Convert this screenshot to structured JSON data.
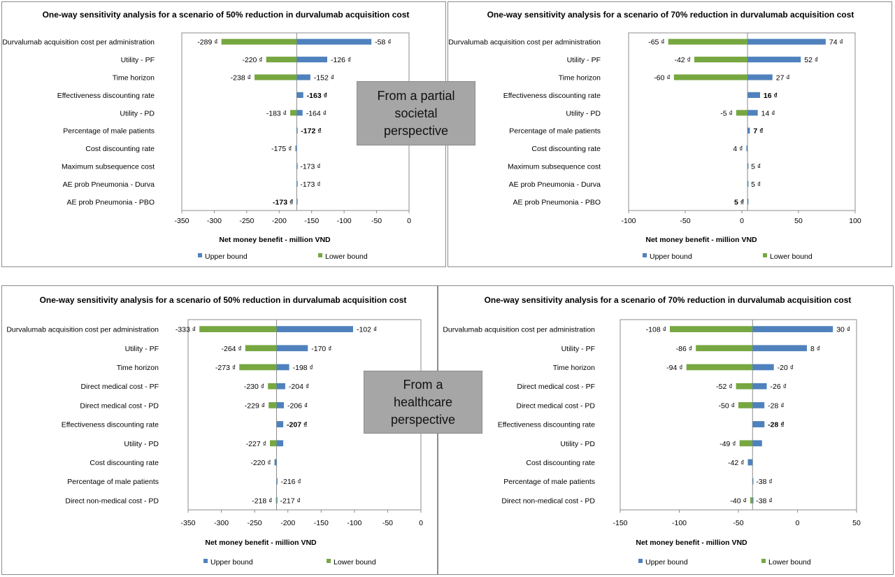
{
  "colors": {
    "upper": "#4f81bd",
    "lower": "#77a741",
    "axis": "#8c8c8c"
  },
  "overlays": [
    {
      "text": "From a partial\nsocietal\nperspective"
    },
    {
      "text": "From a\nhealthcare\nperspective"
    }
  ],
  "chart_data": [
    {
      "type": "bar",
      "orientation": "horizontal-tornado",
      "title": "One-way sensitivity analysis for a scenario of  50% reduction in durvalumab acquisition cost",
      "xlabel": "Net money benefit - million VND",
      "base": -173,
      "xlim": [
        -350,
        0
      ],
      "xticks": [
        -350,
        -300,
        -250,
        -200,
        -150,
        -100,
        -50,
        0
      ],
      "unit_suffix": " ₫",
      "categories": [
        "Durvalumab acquisition cost per administration",
        "Utility - PF",
        "Time horizon",
        "Effectiveness discounting rate",
        "Utility - PD",
        "Percentage of male patients",
        "Cost discounting rate",
        "Maximum subsequence cost",
        "AE prob Pneumonia - Durva",
        "AE prob Pneumonia - PBO"
      ],
      "series": [
        {
          "name": "Upper bound",
          "values": [
            -58,
            -126,
            -152,
            -163,
            -164,
            -172,
            -175,
            -173,
            -173,
            -173
          ]
        },
        {
          "name": "Lower bound",
          "values": [
            -289,
            -220,
            -238,
            -163,
            -183,
            -172,
            -175,
            -173,
            -173,
            -173
          ]
        }
      ],
      "labels": [
        [
          {
            "side": "right",
            "text": "-58 ₫"
          },
          {
            "side": "left",
            "text": "-289 ₫"
          }
        ],
        [
          {
            "side": "right",
            "text": "-126 ₫"
          },
          {
            "side": "left",
            "text": "-220 ₫"
          }
        ],
        [
          {
            "side": "right",
            "text": "-152 ₫"
          },
          {
            "side": "left",
            "text": "-238 ₫"
          }
        ],
        [
          {
            "side": "right",
            "text": "-163 ₫",
            "bold": true
          }
        ],
        [
          {
            "side": "right",
            "text": "-164 ₫"
          },
          {
            "side": "left",
            "text": "-183 ₫"
          }
        ],
        [
          {
            "side": "right",
            "text": "-172 ₫",
            "bold": true
          }
        ],
        [
          {
            "side": "left",
            "text": "-175 ₫"
          }
        ],
        [
          {
            "side": "right",
            "text": "-173 ₫"
          }
        ],
        [
          {
            "side": "right",
            "text": "-173 ₫"
          }
        ],
        [
          {
            "side": "left",
            "text": "-173 ₫",
            "bold": true
          }
        ]
      ],
      "legend": [
        "Upper bound",
        "Lower bound"
      ],
      "legend_position": "bottom"
    },
    {
      "type": "bar",
      "orientation": "horizontal-tornado",
      "title": "One-way sensitivity analysis for a scenario of  70% reduction in durvalumab acquisition cost",
      "xlabel": "Net money benefit - million VND",
      "base": 5,
      "xlim": [
        -100,
        100
      ],
      "xticks": [
        -100,
        -50,
        0,
        50,
        100
      ],
      "unit_suffix": " ₫",
      "categories": [
        "Durvalumab acquisition cost per administration",
        "Utility - PF",
        "Time horizon",
        "Effectiveness discounting rate",
        "Utility - PD",
        "Percentage of male patients",
        "Cost discounting rate",
        "Maximum subsequence cost",
        "AE prob Pneumonia - Durva",
        "AE prob Pneumonia - PBO"
      ],
      "series": [
        {
          "name": "Upper bound",
          "values": [
            74,
            52,
            27,
            16,
            14,
            7,
            4,
            5,
            5,
            5
          ]
        },
        {
          "name": "Lower bound",
          "values": [
            -65,
            -42,
            -60,
            16,
            -5,
            7,
            4,
            5,
            5,
            5
          ]
        }
      ],
      "labels": [
        [
          {
            "side": "right",
            "text": "74 ₫"
          },
          {
            "side": "left",
            "text": "-65 ₫"
          }
        ],
        [
          {
            "side": "right",
            "text": "52 ₫"
          },
          {
            "side": "left",
            "text": "-42 ₫"
          }
        ],
        [
          {
            "side": "right",
            "text": "27 ₫"
          },
          {
            "side": "left",
            "text": "-60 ₫"
          }
        ],
        [
          {
            "side": "right",
            "text": "16 ₫",
            "bold": true
          }
        ],
        [
          {
            "side": "right",
            "text": "14 ₫"
          },
          {
            "side": "left",
            "text": "-5 ₫"
          }
        ],
        [
          {
            "side": "right",
            "text": "7 ₫",
            "bold": true
          }
        ],
        [
          {
            "side": "left",
            "text": "4 ₫"
          }
        ],
        [
          {
            "side": "right",
            "text": "5 ₫"
          }
        ],
        [
          {
            "side": "right",
            "text": "5 ₫"
          }
        ],
        [
          {
            "side": "left",
            "text": "5 ₫",
            "bold": true
          }
        ]
      ],
      "legend": [
        "Upper bound",
        "Lower bound"
      ],
      "legend_position": "bottom"
    },
    {
      "type": "bar",
      "orientation": "horizontal-tornado",
      "title": "One-way sensitivity analysis for a scenario of  50% reduction in durvalumab acquisition cost",
      "xlabel": "Net money benefit - million VND",
      "base": -217,
      "xlim": [
        -350,
        0
      ],
      "xticks": [
        -350,
        -300,
        -250,
        -200,
        -150,
        -100,
        -50,
        0
      ],
      "unit_suffix": " ₫",
      "categories": [
        "Durvalumab acquisition cost per administration",
        "Utility - PF",
        "Time horizon",
        "Direct medical cost - PF",
        "Direct medical cost - PD",
        "Effectiveness discounting rate",
        "Utility - PD",
        "Cost discounting rate",
        "Percentage of male patients",
        "Direct non-medical cost - PD"
      ],
      "series": [
        {
          "name": "Upper bound",
          "values": [
            -102,
            -170,
            -198,
            -204,
            -206,
            -207,
            -207,
            -220,
            -216,
            -217
          ]
        },
        {
          "name": "Lower bound",
          "values": [
            -333,
            -264,
            -273,
            -230,
            -229,
            -207,
            -227,
            -220,
            -216,
            -218
          ]
        }
      ],
      "labels": [
        [
          {
            "side": "right",
            "text": "-102 ₫"
          },
          {
            "side": "left",
            "text": "-333 ₫"
          }
        ],
        [
          {
            "side": "right",
            "text": "-170 ₫"
          },
          {
            "side": "left",
            "text": "-264 ₫"
          }
        ],
        [
          {
            "side": "right",
            "text": "-198 ₫"
          },
          {
            "side": "left",
            "text": "-273 ₫"
          }
        ],
        [
          {
            "side": "right",
            "text": "-204 ₫"
          },
          {
            "side": "left",
            "text": "-230 ₫"
          }
        ],
        [
          {
            "side": "right",
            "text": "-206 ₫"
          },
          {
            "side": "left",
            "text": "-229 ₫"
          }
        ],
        [
          {
            "side": "right",
            "text": "-207 ₫",
            "bold": true
          }
        ],
        [
          {
            "side": "left",
            "text": "-227 ₫"
          }
        ],
        [
          {
            "side": "left",
            "text": "-220 ₫"
          }
        ],
        [
          {
            "side": "right",
            "text": "-216 ₫"
          }
        ],
        [
          {
            "side": "right",
            "text": "-217 ₫"
          },
          {
            "side": "left",
            "text": "-218 ₫"
          }
        ]
      ],
      "legend": [
        "Upper bound",
        "Lower bound"
      ],
      "legend_position": "bottom"
    },
    {
      "type": "bar",
      "orientation": "horizontal-tornado",
      "title": "One-way sensitivity analysis for a scenario of 70% reduction in durvalumab acquisition cost",
      "xlabel": "Net money benefit - million VND",
      "base": -38,
      "xlim": [
        -150,
        50
      ],
      "xticks": [
        -150,
        -100,
        -50,
        0,
        50
      ],
      "unit_suffix": " ₫",
      "categories": [
        "Durvalumab acquisition cost per administration",
        "Utility - PF",
        "Time horizon",
        "Direct medical cost - PF",
        "Direct medical cost - PD",
        "Effectiveness discounting rate",
        "Utility - PD",
        "Cost discounting rate",
        "Percentage of male patients",
        "Direct non-medical cost - PD"
      ],
      "series": [
        {
          "name": "Upper bound",
          "values": [
            30,
            8,
            -20,
            -26,
            -28,
            -28,
            -30,
            -42,
            -38,
            -38
          ]
        },
        {
          "name": "Lower bound",
          "values": [
            -108,
            -86,
            -94,
            -52,
            -50,
            -28,
            -49,
            -42,
            -38,
            -40
          ]
        }
      ],
      "labels": [
        [
          {
            "side": "right",
            "text": "30 ₫"
          },
          {
            "side": "left",
            "text": "-108 ₫"
          }
        ],
        [
          {
            "side": "right",
            "text": "8 ₫"
          },
          {
            "side": "left",
            "text": "-86 ₫"
          }
        ],
        [
          {
            "side": "right",
            "text": "-20 ₫"
          },
          {
            "side": "left",
            "text": "-94 ₫"
          }
        ],
        [
          {
            "side": "right",
            "text": "-26 ₫"
          },
          {
            "side": "left",
            "text": "-52 ₫"
          }
        ],
        [
          {
            "side": "right",
            "text": "-28 ₫"
          },
          {
            "side": "left",
            "text": "-50 ₫"
          }
        ],
        [
          {
            "side": "right",
            "text": "-28 ₫",
            "bold": true
          }
        ],
        [
          {
            "side": "left",
            "text": "-49 ₫"
          }
        ],
        [
          {
            "side": "left",
            "text": "-42 ₫"
          }
        ],
        [
          {
            "side": "right",
            "text": "-38 ₫"
          }
        ],
        [
          {
            "side": "right",
            "text": "-38 ₫"
          },
          {
            "side": "left",
            "text": "-40 ₫"
          }
        ]
      ],
      "legend": [
        "Upper bound",
        "Lower bound"
      ],
      "legend_position": "bottom"
    }
  ]
}
